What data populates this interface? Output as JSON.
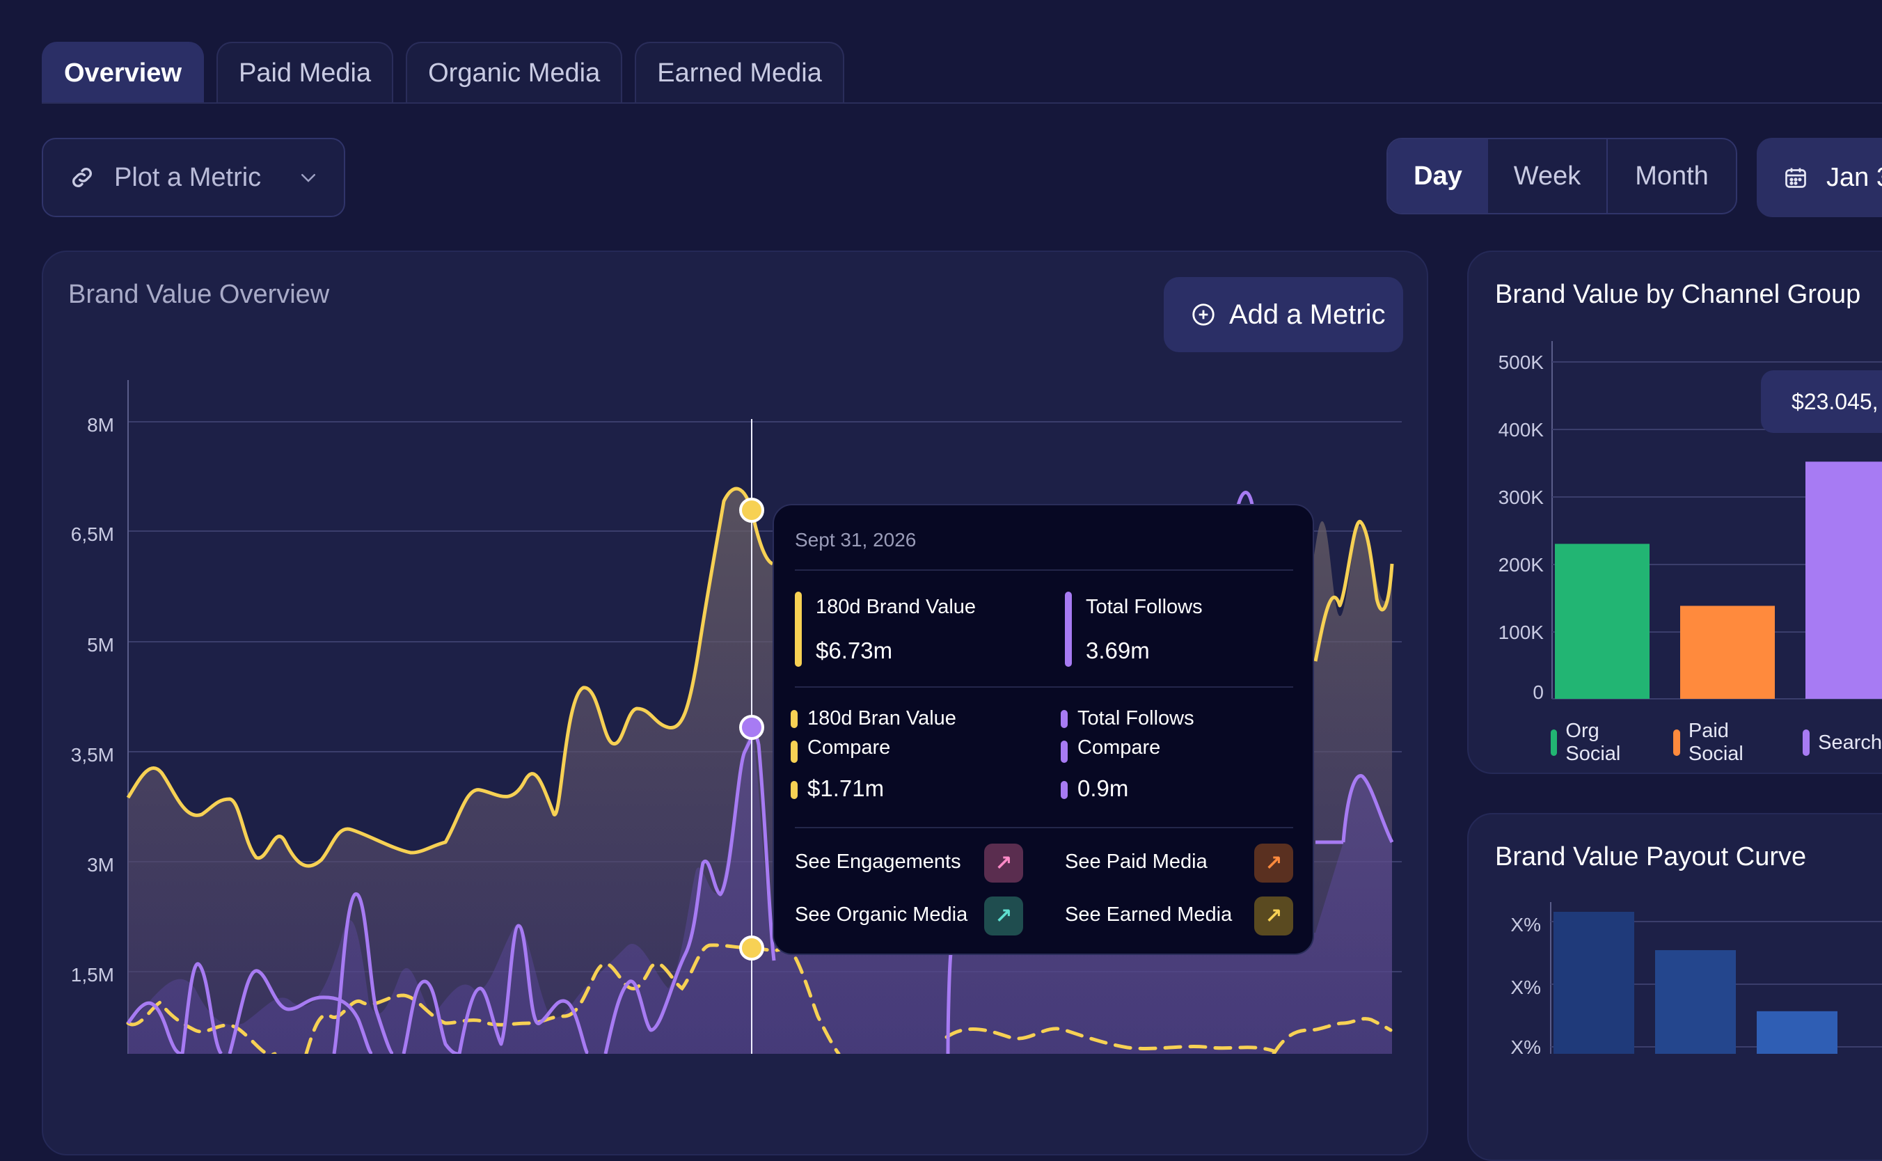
{
  "tabs": [
    {
      "label": "Overview",
      "active": true
    },
    {
      "label": "Paid Media"
    },
    {
      "label": "Organic Media"
    },
    {
      "label": "Earned Media"
    }
  ],
  "toolbar": {
    "plot_metric_label": "Plot a Metric",
    "periods": [
      "Day",
      "Week",
      "Month"
    ],
    "selected_period": "Day",
    "date_label": "Jan 3"
  },
  "main_chart": {
    "title": "Brand Value Overview",
    "add_metric_label": "Add a Metric",
    "y_ticks": [
      "8M",
      "6,5M",
      "5M",
      "3,5M",
      "3M",
      "1,5M"
    ],
    "colors": {
      "yellow": "#f7d154",
      "purple": "#a77bf3"
    }
  },
  "tooltip": {
    "date": "Sept 31, 2026",
    "metric1_label": "180d Brand Value",
    "metric1_value": "$6.73m",
    "metric2_label": "Total Follows",
    "metric2_value": "3.69m",
    "compare1_label_line1": "180d Bran Value",
    "compare1_label_line2": "Compare",
    "compare1_value": "$1.71m",
    "compare2_label_line1": "Total Follows",
    "compare2_label_line2": "Compare",
    "compare2_value": "0.9m",
    "links": [
      "See Engagements",
      "See Paid Media",
      "See Organic Media",
      "See Earned Media"
    ]
  },
  "channel_chart": {
    "title": "Brand Value by Channel Group",
    "y_ticks": [
      "500K",
      "400K",
      "300K",
      "200K",
      "100K",
      "0"
    ],
    "bar_label": "$23.045,",
    "legend": [
      "Org Social",
      "Paid Social",
      "Search"
    ]
  },
  "payout_chart": {
    "title": "Brand Value Payout Curve",
    "y_ticks": [
      "X%",
      "X%",
      "X%"
    ]
  },
  "chart_data": [
    {
      "type": "bar",
      "title": "Brand Value by Channel Group",
      "categories": [
        "Org Social",
        "Paid Social",
        "Search"
      ],
      "values": [
        230000,
        138000,
        352000
      ],
      "colors": [
        "#22b573",
        "#ff8a3d",
        "#a77bf3"
      ],
      "ylim": [
        0,
        500000
      ],
      "annotation": "$23.045,"
    },
    {
      "type": "bar",
      "title": "Brand Value Payout Curve",
      "values": [
        1.0,
        0.73,
        0.3
      ],
      "colors": [
        "#1f3a7a",
        "#24468d",
        "#2f5eb4"
      ]
    }
  ]
}
